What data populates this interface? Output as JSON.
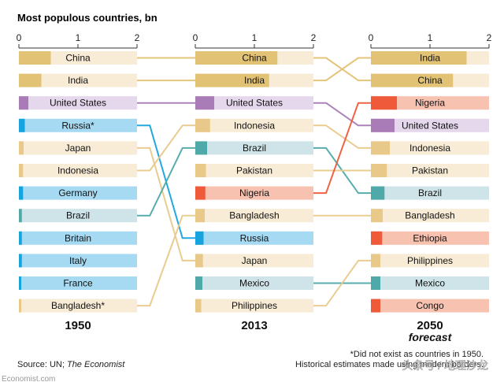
{
  "title": "Most populous countries, bn",
  "axis_ticks": [
    "0",
    "1",
    "2"
  ],
  "source_prefix": "Source: UN; ",
  "source_italic": "The Economist",
  "footnote_1": "*Did not exist as countries in 1950.",
  "footnote_2": "Historical estimates made using modern borders.",
  "watermark": "头条号 / 地理沙龙",
  "site_fragment": "Economist.com",
  "colors": {
    "China": "#e2c274",
    "India": "#e2c274",
    "United States": "#a97bb7",
    "Russia": "#17a3de",
    "Russia*": "#17a3de",
    "Japan": "#e8c98a",
    "Indonesia": "#e8c98a",
    "Germany": "#17a3de",
    "Brazil": "#4fa9a8",
    "Britain": "#17a3de",
    "Italy": "#17a3de",
    "France": "#17a3de",
    "Bangladesh": "#e8c98a",
    "Bangladesh*": "#e8c98a",
    "Pakistan": "#e8c98a",
    "Nigeria": "#ef5a3a",
    "Mexico": "#4fa9a8",
    "Philippines": "#e8c98a",
    "Ethiopia": "#ef5a3a",
    "Congo": "#ef5a3a",
    "asia_band": "#f8ecd6",
    "us_band": "#e5d7ec",
    "europe_band": "#a6daf3",
    "latam_band": "#cfe4e8",
    "africa_band": "#f8c2b1"
  },
  "chart_data": {
    "type": "bar",
    "xlim": [
      0,
      2
    ],
    "panels": [
      {
        "year": "1950",
        "subtitle": "",
        "rows": [
          {
            "country": "China",
            "value": 0.54
          },
          {
            "country": "India",
            "value": 0.38
          },
          {
            "country": "United States",
            "value": 0.16
          },
          {
            "country": "Russia*",
            "value": 0.1
          },
          {
            "country": "Japan",
            "value": 0.08
          },
          {
            "country": "Indonesia",
            "value": 0.07
          },
          {
            "country": "Germany",
            "value": 0.07
          },
          {
            "country": "Brazil",
            "value": 0.05
          },
          {
            "country": "Britain",
            "value": 0.05
          },
          {
            "country": "Italy",
            "value": 0.05
          },
          {
            "country": "France",
            "value": 0.04
          },
          {
            "country": "Bangladesh*",
            "value": 0.04
          }
        ]
      },
      {
        "year": "2013",
        "subtitle": "",
        "rows": [
          {
            "country": "China",
            "value": 1.39
          },
          {
            "country": "India",
            "value": 1.25
          },
          {
            "country": "United States",
            "value": 0.32
          },
          {
            "country": "Indonesia",
            "value": 0.25
          },
          {
            "country": "Brazil",
            "value": 0.2
          },
          {
            "country": "Pakistan",
            "value": 0.18
          },
          {
            "country": "Nigeria",
            "value": 0.17
          },
          {
            "country": "Bangladesh",
            "value": 0.16
          },
          {
            "country": "Russia",
            "value": 0.14
          },
          {
            "country": "Japan",
            "value": 0.13
          },
          {
            "country": "Mexico",
            "value": 0.12
          },
          {
            "country": "Philippines",
            "value": 0.1
          }
        ]
      },
      {
        "year": "2050",
        "subtitle": "forecast",
        "rows": [
          {
            "country": "India",
            "value": 1.62
          },
          {
            "country": "China",
            "value": 1.39
          },
          {
            "country": "Nigeria",
            "value": 0.44
          },
          {
            "country": "United States",
            "value": 0.4
          },
          {
            "country": "Indonesia",
            "value": 0.32
          },
          {
            "country": "Pakistan",
            "value": 0.27
          },
          {
            "country": "Brazil",
            "value": 0.23
          },
          {
            "country": "Bangladesh",
            "value": 0.2
          },
          {
            "country": "Ethiopia",
            "value": 0.19
          },
          {
            "country": "Philippines",
            "value": 0.16
          },
          {
            "country": "Mexico",
            "value": 0.16
          },
          {
            "country": "Congo",
            "value": 0.16
          }
        ]
      }
    ]
  }
}
